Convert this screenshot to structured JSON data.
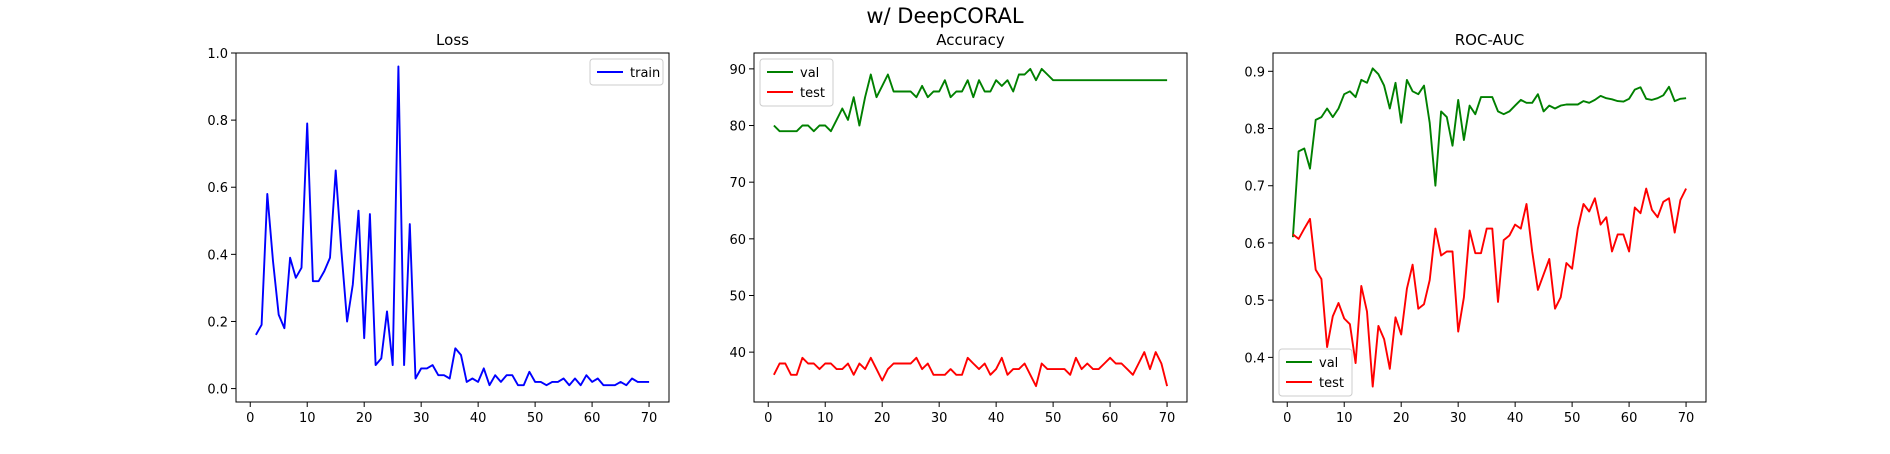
{
  "figure": {
    "suptitle": "w/ DeepCORAL"
  },
  "chart_data": [
    {
      "type": "line",
      "title": "Loss",
      "xlabel": "",
      "ylabel": "",
      "xlim": [
        -2.5,
        73.5
      ],
      "ylim": [
        -0.04,
        1.0
      ],
      "xticks": [
        0,
        10,
        20,
        30,
        40,
        50,
        60,
        70
      ],
      "yticks": [
        0.0,
        0.2,
        0.4,
        0.6,
        0.8,
        1.0
      ],
      "ytick_labels": [
        "0.0",
        "0.2",
        "0.4",
        "0.6",
        "0.8",
        "1.0"
      ],
      "grid": false,
      "legend": {
        "position": "upper right"
      },
      "series": [
        {
          "name": "train",
          "color": "#0000ff",
          "x": [
            1,
            2,
            3,
            4,
            5,
            6,
            7,
            8,
            9,
            10,
            11,
            12,
            13,
            14,
            15,
            16,
            17,
            18,
            19,
            20,
            21,
            22,
            23,
            24,
            25,
            26,
            27,
            28,
            29,
            30,
            31,
            32,
            33,
            34,
            35,
            36,
            37,
            38,
            39,
            40,
            41,
            42,
            43,
            44,
            45,
            46,
            47,
            48,
            49,
            50,
            51,
            52,
            53,
            54,
            55,
            56,
            57,
            58,
            59,
            60,
            61,
            62,
            63,
            64,
            65,
            66,
            67,
            68,
            69,
            70
          ],
          "values": [
            0.16,
            0.19,
            0.58,
            0.38,
            0.22,
            0.18,
            0.39,
            0.33,
            0.36,
            0.79,
            0.32,
            0.32,
            0.35,
            0.39,
            0.65,
            0.41,
            0.2,
            0.31,
            0.53,
            0.15,
            0.52,
            0.07,
            0.09,
            0.23,
            0.07,
            0.96,
            0.07,
            0.49,
            0.03,
            0.06,
            0.06,
            0.07,
            0.04,
            0.04,
            0.03,
            0.12,
            0.1,
            0.02,
            0.03,
            0.02,
            0.06,
            0.01,
            0.04,
            0.02,
            0.04,
            0.04,
            0.01,
            0.01,
            0.05,
            0.02,
            0.02,
            0.01,
            0.02,
            0.02,
            0.03,
            0.01,
            0.03,
            0.01,
            0.04,
            0.02,
            0.03,
            0.01,
            0.01,
            0.01,
            0.02,
            0.01,
            0.03,
            0.02,
            0.02,
            0.02
          ]
        }
      ]
    },
    {
      "type": "line",
      "title": "Accuracy",
      "xlabel": "",
      "ylabel": "",
      "xlim": [
        -2.5,
        73.5
      ],
      "ylim": [
        31.2,
        92.8
      ],
      "xticks": [
        0,
        10,
        20,
        30,
        40,
        50,
        60,
        70
      ],
      "yticks": [
        40,
        50,
        60,
        70,
        80,
        90
      ],
      "ytick_labels": [
        "40",
        "50",
        "60",
        "70",
        "80",
        "90"
      ],
      "grid": false,
      "legend": {
        "position": "upper left"
      },
      "series": [
        {
          "name": "val",
          "color": "#008000",
          "x": [
            1,
            2,
            3,
            4,
            5,
            6,
            7,
            8,
            9,
            10,
            11,
            12,
            13,
            14,
            15,
            16,
            17,
            18,
            19,
            20,
            21,
            22,
            23,
            24,
            25,
            26,
            27,
            28,
            29,
            30,
            31,
            32,
            33,
            34,
            35,
            36,
            37,
            38,
            39,
            40,
            41,
            42,
            43,
            44,
            45,
            46,
            47,
            48,
            49,
            50,
            51,
            52,
            53,
            54,
            55,
            56,
            57,
            58,
            59,
            60,
            61,
            62,
            63,
            64,
            65,
            66,
            67,
            68,
            69,
            70
          ],
          "values": [
            80,
            79,
            79,
            79,
            79,
            80,
            80,
            79,
            80,
            80,
            79,
            81,
            83,
            81,
            85,
            80,
            85,
            89,
            85,
            87,
            89,
            86,
            86,
            86,
            86,
            85,
            87,
            85,
            86,
            86,
            88,
            85,
            86,
            86,
            88,
            85,
            88,
            86,
            86,
            88,
            87,
            88,
            86,
            89,
            89,
            90,
            88,
            90,
            89,
            88,
            88,
            88,
            88,
            88,
            88,
            88,
            88,
            88,
            88,
            88,
            88,
            88,
            88,
            88,
            88,
            88,
            88,
            88,
            88,
            88
          ]
        },
        {
          "name": "test",
          "color": "#ff0000",
          "x": [
            1,
            2,
            3,
            4,
            5,
            6,
            7,
            8,
            9,
            10,
            11,
            12,
            13,
            14,
            15,
            16,
            17,
            18,
            19,
            20,
            21,
            22,
            23,
            24,
            25,
            26,
            27,
            28,
            29,
            30,
            31,
            32,
            33,
            34,
            35,
            36,
            37,
            38,
            39,
            40,
            41,
            42,
            43,
            44,
            45,
            46,
            47,
            48,
            49,
            50,
            51,
            52,
            53,
            54,
            55,
            56,
            57,
            58,
            59,
            60,
            61,
            62,
            63,
            64,
            65,
            66,
            67,
            68,
            69,
            70
          ],
          "values": [
            36,
            38,
            38,
            36,
            36,
            39,
            38,
            38,
            37,
            38,
            38,
            37,
            37,
            38,
            36,
            38,
            37,
            39,
            37,
            35,
            37,
            38,
            38,
            38,
            38,
            39,
            37,
            38,
            36,
            36,
            36,
            37,
            36,
            36,
            39,
            38,
            37,
            38,
            36,
            37,
            39,
            36,
            37,
            37,
            38,
            36,
            34,
            38,
            37,
            37,
            37,
            37,
            36,
            39,
            37,
            38,
            37,
            37,
            38,
            39,
            38,
            38,
            37,
            36,
            38,
            40,
            37,
            40,
            38,
            34
          ]
        }
      ]
    },
    {
      "type": "line",
      "title": "ROC-AUC",
      "xlabel": "",
      "ylabel": "",
      "xlim": [
        -2.5,
        73.5
      ],
      "ylim": [
        0.322,
        0.932
      ],
      "xticks": [
        0,
        10,
        20,
        30,
        40,
        50,
        60,
        70
      ],
      "yticks": [
        0.4,
        0.5,
        0.6,
        0.7,
        0.8,
        0.9
      ],
      "ytick_labels": [
        "0.4",
        "0.5",
        "0.6",
        "0.7",
        "0.8",
        "0.9"
      ],
      "grid": false,
      "legend": {
        "position": "lower left"
      },
      "series": [
        {
          "name": "val",
          "color": "#008000",
          "x": [
            1,
            2,
            3,
            4,
            5,
            6,
            7,
            8,
            9,
            10,
            11,
            12,
            13,
            14,
            15,
            16,
            17,
            18,
            19,
            20,
            21,
            22,
            23,
            24,
            25,
            26,
            27,
            28,
            29,
            30,
            31,
            32,
            33,
            34,
            35,
            36,
            37,
            38,
            39,
            40,
            41,
            42,
            43,
            44,
            45,
            46,
            47,
            48,
            49,
            50,
            51,
            52,
            53,
            54,
            55,
            56,
            57,
            58,
            59,
            60,
            61,
            62,
            63,
            64,
            65,
            66,
            67,
            68,
            69,
            70
          ],
          "values": [
            0.61,
            0.76,
            0.765,
            0.73,
            0.815,
            0.82,
            0.835,
            0.82,
            0.835,
            0.86,
            0.865,
            0.855,
            0.885,
            0.88,
            0.905,
            0.895,
            0.875,
            0.835,
            0.88,
            0.81,
            0.885,
            0.865,
            0.86,
            0.875,
            0.81,
            0.7,
            0.83,
            0.82,
            0.77,
            0.85,
            0.78,
            0.84,
            0.825,
            0.855,
            0.855,
            0.855,
            0.83,
            0.825,
            0.83,
            0.84,
            0.85,
            0.845,
            0.845,
            0.86,
            0.83,
            0.84,
            0.835,
            0.84,
            0.842,
            0.842,
            0.842,
            0.848,
            0.845,
            0.85,
            0.857,
            0.853,
            0.851,
            0.848,
            0.847,
            0.852,
            0.868,
            0.872,
            0.852,
            0.85,
            0.853,
            0.858,
            0.873,
            0.848,
            0.852,
            0.853
          ]
        },
        {
          "name": "test",
          "color": "#ff0000",
          "x": [
            1,
            2,
            3,
            4,
            5,
            6,
            7,
            8,
            9,
            10,
            11,
            12,
            13,
            14,
            15,
            16,
            17,
            18,
            19,
            20,
            21,
            22,
            23,
            24,
            25,
            26,
            27,
            28,
            29,
            30,
            31,
            32,
            33,
            34,
            35,
            36,
            37,
            38,
            39,
            40,
            41,
            42,
            43,
            44,
            45,
            46,
            47,
            48,
            49,
            50,
            51,
            52,
            53,
            54,
            55,
            56,
            57,
            58,
            59,
            60,
            61,
            62,
            63,
            64,
            65,
            66,
            67,
            68,
            69,
            70
          ],
          "values": [
            0.615,
            0.607,
            0.625,
            0.642,
            0.553,
            0.537,
            0.418,
            0.472,
            0.495,
            0.468,
            0.458,
            0.39,
            0.525,
            0.48,
            0.349,
            0.455,
            0.432,
            0.38,
            0.47,
            0.44,
            0.52,
            0.562,
            0.485,
            0.493,
            0.535,
            0.625,
            0.578,
            0.585,
            0.585,
            0.445,
            0.505,
            0.622,
            0.582,
            0.582,
            0.625,
            0.625,
            0.497,
            0.605,
            0.613,
            0.632,
            0.625,
            0.668,
            0.585,
            0.518,
            0.545,
            0.572,
            0.485,
            0.505,
            0.565,
            0.555,
            0.625,
            0.668,
            0.655,
            0.678,
            0.632,
            0.645,
            0.585,
            0.615,
            0.615,
            0.585,
            0.662,
            0.652,
            0.695,
            0.658,
            0.645,
            0.672,
            0.678,
            0.618,
            0.675,
            0.695
          ]
        }
      ]
    }
  ]
}
